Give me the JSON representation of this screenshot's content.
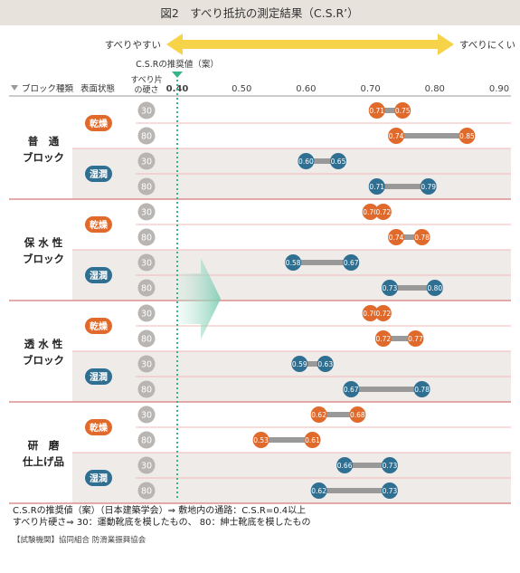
{
  "title": "図2　すべり抵抗の測定結果（C.S.R’）",
  "scale": {
    "left_label": "すべりやすい",
    "right_label": "すべりにくい",
    "recommended_label": "C.S.Rの推奨値（案）",
    "recommended_value": 0.4
  },
  "headers": {
    "category": "ブロック種類",
    "surface": "表面状態",
    "hardness_line1": "すべり片",
    "hardness_line2": "の硬さ"
  },
  "chart_data": {
    "type": "range-dot",
    "xlim": [
      0.4,
      0.9
    ],
    "x_ticks": [
      "0.40",
      "0.50",
      "0.60",
      "0.70",
      "0.80",
      "0.90"
    ],
    "colors": {
      "dry": "#e06a2c",
      "wet": "#2f6f92",
      "connector": "#999999",
      "recommended": "#38b48b"
    },
    "groups": [
      {
        "name_lines": [
          "普　通",
          "ブロック"
        ],
        "conditions": [
          {
            "label": "乾燥",
            "type": "dry",
            "rows": [
              {
                "hardness": "30",
                "min": 0.71,
                "max": 0.75,
                "min_label": "0.71",
                "max_label": "0.75"
              },
              {
                "hardness": "80",
                "min": 0.74,
                "max": 0.85,
                "min_label": "0.74",
                "max_label": "0.85"
              }
            ]
          },
          {
            "label": "湿潤",
            "type": "wet",
            "rows": [
              {
                "hardness": "30",
                "min": 0.6,
                "max": 0.65,
                "min_label": "0.60",
                "max_label": "0.65"
              },
              {
                "hardness": "80",
                "min": 0.71,
                "max": 0.79,
                "min_label": "0.71",
                "max_label": "0.79"
              }
            ]
          }
        ]
      },
      {
        "name_lines": [
          "保 水 性",
          "ブロック"
        ],
        "conditions": [
          {
            "label": "乾燥",
            "type": "dry",
            "rows": [
              {
                "hardness": "30",
                "min": 0.7,
                "max": 0.72,
                "min_label": "0.70",
                "max_label": "0.72"
              },
              {
                "hardness": "80",
                "min": 0.74,
                "max": 0.78,
                "min_label": "0.74",
                "max_label": "0.78"
              }
            ]
          },
          {
            "label": "湿潤",
            "type": "wet",
            "rows": [
              {
                "hardness": "30",
                "min": 0.58,
                "max": 0.67,
                "min_label": "0.58",
                "max_label": "0.67"
              },
              {
                "hardness": "80",
                "min": 0.73,
                "max": 0.8,
                "min_label": "0.73",
                "max_label": "0.80"
              }
            ]
          }
        ]
      },
      {
        "name_lines": [
          "透 水 性",
          "ブロック"
        ],
        "conditions": [
          {
            "label": "乾燥",
            "type": "dry",
            "rows": [
              {
                "hardness": "30",
                "min": 0.7,
                "max": 0.72,
                "min_label": "0.70",
                "max_label": "0.72"
              },
              {
                "hardness": "80",
                "min": 0.72,
                "max": 0.77,
                "min_label": "0.72",
                "max_label": "0.77"
              }
            ]
          },
          {
            "label": "湿潤",
            "type": "wet",
            "rows": [
              {
                "hardness": "30",
                "min": 0.59,
                "max": 0.63,
                "min_label": "0.59",
                "max_label": "0.63"
              },
              {
                "hardness": "80",
                "min": 0.67,
                "max": 0.78,
                "min_label": "0.67",
                "max_label": "0.78"
              }
            ]
          }
        ]
      },
      {
        "name_lines": [
          "研　磨",
          "仕上げ品"
        ],
        "conditions": [
          {
            "label": "乾燥",
            "type": "dry",
            "rows": [
              {
                "hardness": "30",
                "min": 0.62,
                "max": 0.68,
                "min_label": "0.62",
                "max_label": "0.68"
              },
              {
                "hardness": "80",
                "min": 0.53,
                "max": 0.61,
                "min_label": "0.53",
                "max_label": "0.61"
              }
            ]
          },
          {
            "label": "湿潤",
            "type": "wet",
            "rows": [
              {
                "hardness": "30",
                "min": 0.66,
                "max": 0.73,
                "min_label": "0.66",
                "max_label": "0.73"
              },
              {
                "hardness": "80",
                "min": 0.62,
                "max": 0.73,
                "min_label": "0.62",
                "max_label": "0.73"
              }
            ]
          }
        ]
      }
    ]
  },
  "notes": [
    "C.S.Rの推奨値（案）（日本建築学会）⇒ 敷地内の通路：C.S.R=0.4以上",
    "すべり片硬さ⇒ 30：運動靴底を模したもの、 80：紳士靴底を模したもの"
  ],
  "source": "【試験機関】協同組合 防滑業振興協会"
}
